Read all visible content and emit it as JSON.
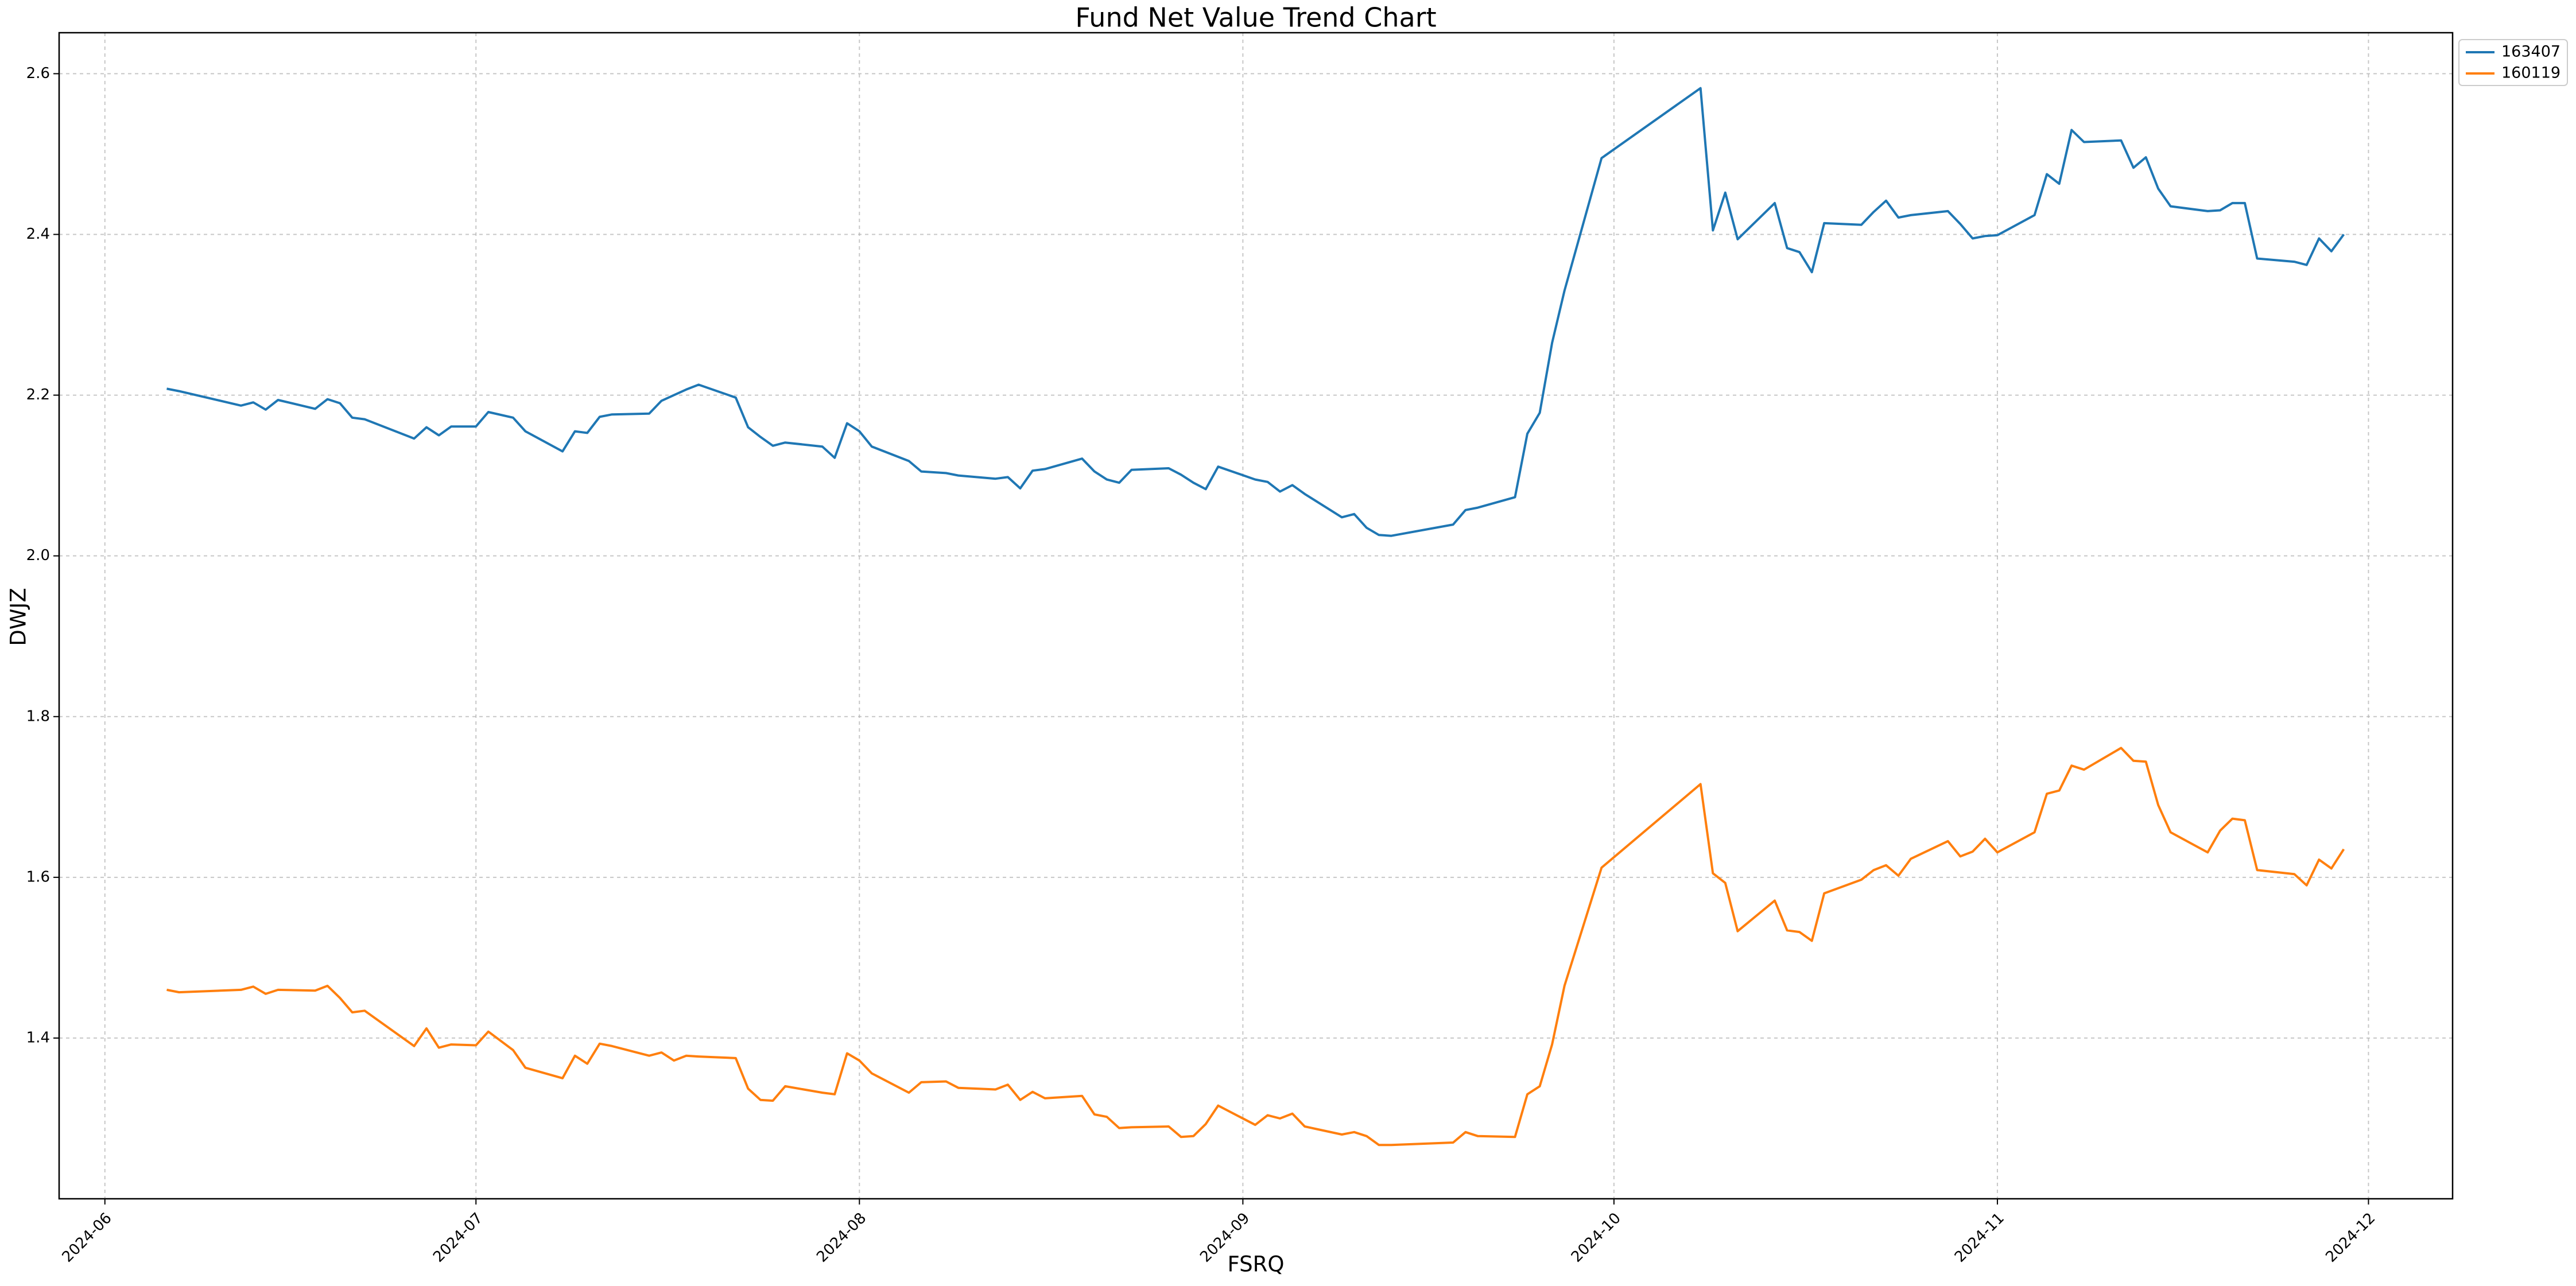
{
  "chart_data": {
    "type": "line",
    "title": "Fund Net Value Trend Chart",
    "x_label": "FSRQ",
    "y_label": "DWJZ",
    "x": [
      5,
      6,
      11,
      12,
      13,
      14,
      17,
      18,
      19,
      20,
      21,
      25,
      26,
      27,
      28,
      30,
      31,
      33,
      34,
      37,
      38,
      39,
      40,
      41,
      44,
      45,
      46,
      47,
      48,
      51,
      52,
      53,
      54,
      55,
      58,
      59,
      60,
      61,
      62,
      65,
      66,
      68,
      69,
      72,
      73,
      74,
      75,
      76,
      79,
      80,
      81,
      82,
      83,
      86,
      87,
      88,
      89,
      90,
      93,
      94,
      95,
      96,
      97,
      100,
      101,
      102,
      103,
      104,
      109,
      110,
      111,
      114,
      115,
      116,
      117,
      118,
      121,
      129,
      130,
      131,
      132,
      135,
      136,
      137,
      138,
      139,
      142,
      143,
      144,
      145,
      146,
      149,
      150,
      151,
      152,
      153,
      156,
      157,
      158,
      159,
      160,
      163,
      164,
      165,
      166,
      167,
      170,
      171,
      172,
      173,
      174,
      177,
      178,
      179,
      180,
      181
    ],
    "series": [
      {
        "name": "163407",
        "color": "#1f77b4",
        "values": [
          2.208,
          2.205,
          2.187,
          2.191,
          2.182,
          2.194,
          2.183,
          2.195,
          2.19,
          2.172,
          2.17,
          2.146,
          2.16,
          2.15,
          2.161,
          2.161,
          2.179,
          2.172,
          2.155,
          2.13,
          2.155,
          2.153,
          2.173,
          2.176,
          2.177,
          2.193,
          2.2,
          2.207,
          2.213,
          2.197,
          2.16,
          2.148,
          2.137,
          2.141,
          2.136,
          2.122,
          2.165,
          2.155,
          2.136,
          2.118,
          2.105,
          2.103,
          2.1,
          2.096,
          2.098,
          2.084,
          2.106,
          2.108,
          2.121,
          2.105,
          2.095,
          2.091,
          2.107,
          2.109,
          2.101,
          2.091,
          2.083,
          2.111,
          2.095,
          2.092,
          2.08,
          2.088,
          2.077,
          2.048,
          2.052,
          2.035,
          2.026,
          2.025,
          2.039,
          2.057,
          2.06,
          2.073,
          2.152,
          2.178,
          2.265,
          2.33,
          2.495,
          2.582,
          2.405,
          2.452,
          2.394,
          2.439,
          2.383,
          2.378,
          2.353,
          2.414,
          2.412,
          2.428,
          2.442,
          2.421,
          2.424,
          2.429,
          2.413,
          2.395,
          2.398,
          2.399,
          2.424,
          2.475,
          2.463,
          2.53,
          2.515,
          2.517,
          2.483,
          2.496,
          2.457,
          2.435,
          2.429,
          2.43,
          2.439,
          2.439,
          2.37,
          2.366,
          2.362,
          2.395,
          2.379,
          2.4
        ]
      },
      {
        "name": "160119",
        "color": "#ff7f0e",
        "values": [
          1.46,
          1.457,
          1.46,
          1.464,
          1.455,
          1.46,
          1.459,
          1.465,
          1.45,
          1.432,
          1.434,
          1.39,
          1.412,
          1.388,
          1.392,
          1.391,
          1.408,
          1.385,
          1.363,
          1.35,
          1.378,
          1.368,
          1.393,
          1.39,
          1.378,
          1.382,
          1.372,
          1.378,
          1.377,
          1.375,
          1.337,
          1.323,
          1.322,
          1.34,
          1.332,
          1.33,
          1.381,
          1.372,
          1.356,
          1.332,
          1.345,
          1.346,
          1.338,
          1.336,
          1.342,
          1.323,
          1.333,
          1.325,
          1.328,
          1.305,
          1.302,
          1.288,
          1.289,
          1.29,
          1.277,
          1.278,
          1.293,
          1.316,
          1.292,
          1.304,
          1.3,
          1.306,
          1.29,
          1.28,
          1.283,
          1.278,
          1.267,
          1.267,
          1.27,
          1.283,
          1.278,
          1.277,
          1.33,
          1.34,
          1.392,
          1.465,
          1.612,
          1.716,
          1.605,
          1.593,
          1.533,
          1.571,
          1.534,
          1.532,
          1.521,
          1.58,
          1.597,
          1.609,
          1.615,
          1.602,
          1.623,
          1.645,
          1.626,
          1.632,
          1.648,
          1.631,
          1.656,
          1.704,
          1.708,
          1.739,
          1.734,
          1.761,
          1.745,
          1.744,
          1.69,
          1.656,
          1.631,
          1.658,
          1.673,
          1.671,
          1.609,
          1.604,
          1.59,
          1.622,
          1.611,
          1.635
        ]
      }
    ],
    "xlim": [
      -3.7,
      189.8
    ],
    "xticks": [
      {
        "value": 0,
        "label": "2024-06"
      },
      {
        "value": 30,
        "label": "2024-07"
      },
      {
        "value": 61,
        "label": "2024-08"
      },
      {
        "value": 92,
        "label": "2024-09"
      },
      {
        "value": 122,
        "label": "2024-10"
      },
      {
        "value": 153,
        "label": "2024-11"
      },
      {
        "value": 183,
        "label": "2024-12"
      }
    ],
    "ylim": [
      1.2,
      2.651
    ],
    "yticks": [
      1.4,
      1.6,
      1.8,
      {
        "value": 2,
        "label": "2.0"
      },
      2.2,
      2.4,
      2.6
    ],
    "grid": true,
    "legend": "outside-right"
  }
}
